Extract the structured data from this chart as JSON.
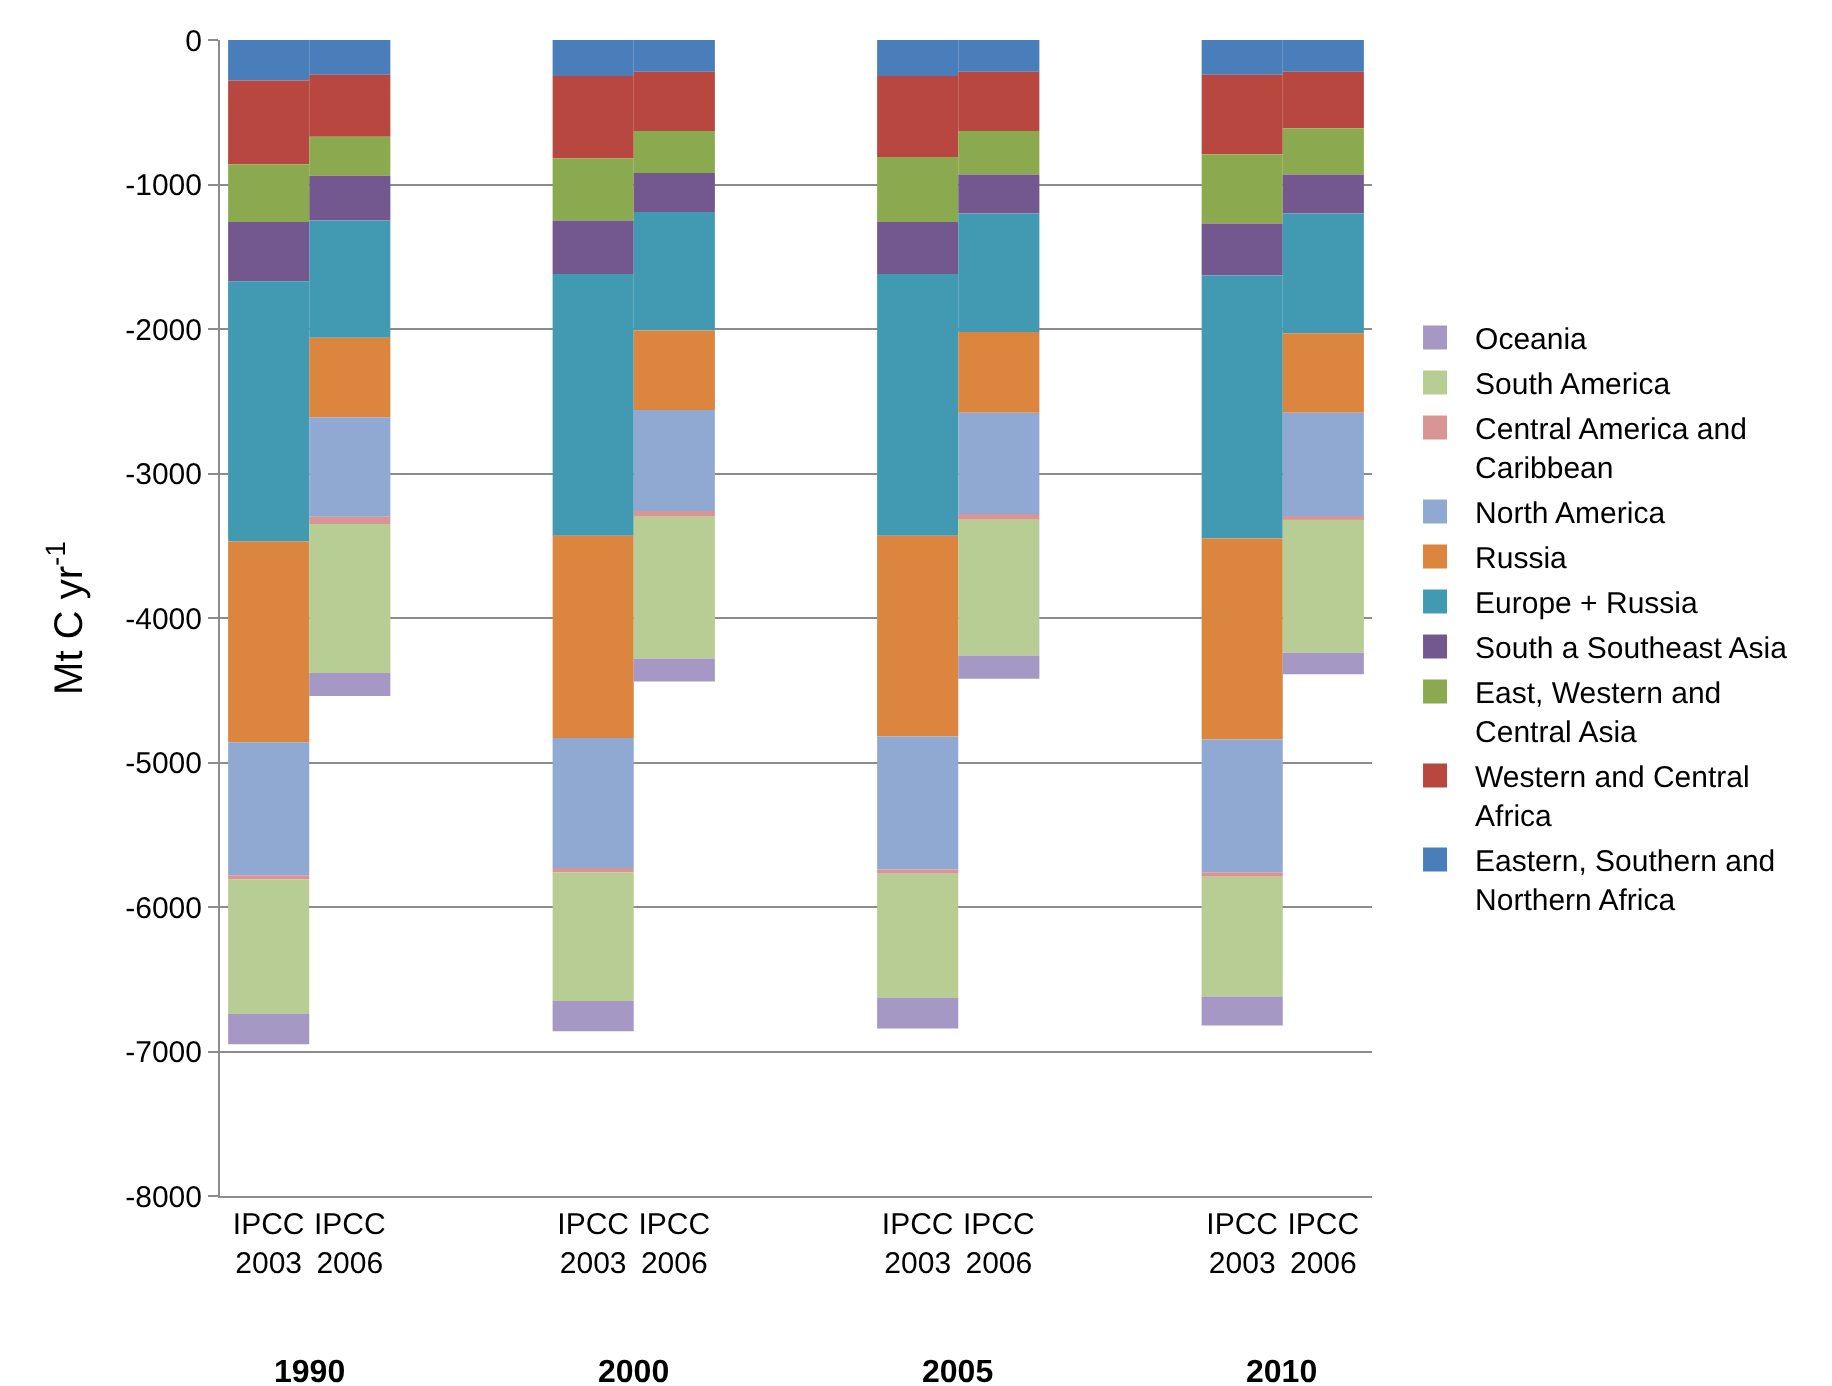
{
  "chart_data": {
    "type": "bar",
    "stacked": true,
    "ylabel": "Mt C yr$^{-1}$",
    "categories": [
      "IPCC 2003",
      "IPCC 2006",
      "IPCC 2003",
      "IPCC 2006",
      "IPCC 2003",
      "IPCC 2006",
      "IPCC 2003",
      "IPCC 2006"
    ],
    "annotations": [
      "1990",
      "2000",
      "2005",
      "2010"
    ],
    "series": [
      {
        "name": "Eastern, Southern and Northern Africa",
        "color": "#4a7ebb",
        "values": [
          -280,
          -240,
          -250,
          -220,
          -250,
          -220,
          -240,
          -220
        ]
      },
      {
        "name": "Western and Central Africa",
        "color": "#b7473f",
        "values": [
          -580,
          -430,
          -570,
          -410,
          -560,
          -410,
          -550,
          -390
        ]
      },
      {
        "name": "East, Western and Central Asia",
        "color": "#8ba94e",
        "values": [
          -400,
          -270,
          -430,
          -290,
          -450,
          -300,
          -480,
          -320
        ]
      },
      {
        "name": "South a Southeast Asia",
        "color": "#735890",
        "values": [
          -410,
          -310,
          -370,
          -270,
          -360,
          -270,
          -360,
          -270
        ]
      },
      {
        "name": "Europe + Russia",
        "color": "#4299b2",
        "values": [
          -1800,
          -810,
          -1810,
          -820,
          -1810,
          -820,
          -1820,
          -830
        ]
      },
      {
        "name": "Russia",
        "color": "#dc853f",
        "values": [
          -1390,
          -550,
          -1400,
          -550,
          -1390,
          -560,
          -1390,
          -550
        ]
      },
      {
        "name": "North America",
        "color": "#90a9d2",
        "values": [
          -920,
          -690,
          -900,
          -700,
          -920,
          -700,
          -920,
          -720
        ]
      },
      {
        "name": "Central America and Caribbean",
        "color": "#d99594",
        "values": [
          -30,
          -50,
          -30,
          -40,
          -30,
          -40,
          -30,
          -20
        ]
      },
      {
        "name": "South America",
        "color": "#b8cd94",
        "values": [
          -930,
          -1030,
          -890,
          -980,
          -860,
          -940,
          -830,
          -920
        ]
      },
      {
        "name": "Oceania",
        "color": "#a698c4",
        "values": [
          -210,
          -160,
          -210,
          -160,
          -210,
          -160,
          -200,
          -150
        ]
      }
    ],
    "ylim": [
      -8000,
      0
    ],
    "yticks": [
      -8000,
      -7000,
      -6000,
      -5000,
      -4000,
      -3000,
      -2000,
      -1000,
      0
    ],
    "grid": "y",
    "legend": "right"
  }
}
